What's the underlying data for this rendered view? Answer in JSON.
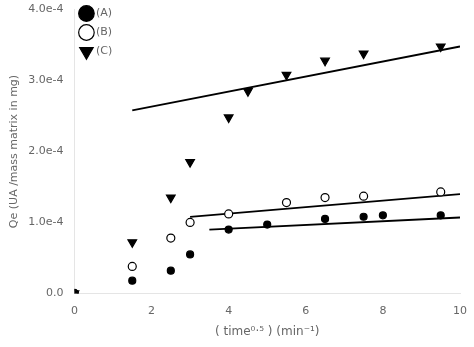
{
  "chart_data": {
    "type": "scatter",
    "xlabel": "( time⁰·⁵ ) (min⁻¹)",
    "ylabel": "Qe (UA /mass matrix in mg)",
    "xlim": [
      0,
      10
    ],
    "ylim": [
      0.0,
      0.0004
    ],
    "xticks": [
      0,
      2,
      4,
      6,
      8,
      10
    ],
    "yticks": [
      {
        "value": 0.0,
        "label": "0.0"
      },
      {
        "value": 0.0001,
        "label": "1.0e-4"
      },
      {
        "value": 0.0002,
        "label": "2.0e-4"
      },
      {
        "value": 0.0003,
        "label": "3.0e-4"
      },
      {
        "value": 0.0004,
        "label": "4.0e-4"
      }
    ],
    "grid": false,
    "legend": "upper left",
    "series": [
      {
        "name": "(A)",
        "color": "#000000",
        "marker": "circle",
        "x": [
          0.0,
          1.5,
          2.5,
          3.0,
          4.0,
          5.0,
          6.5,
          7.5,
          8.0,
          9.5
        ],
        "values": [
          0.0,
          1.8e-05,
          3.2e-05,
          5.5e-05,
          9e-05,
          9.7e-05,
          0.000105,
          0.000108,
          0.00011,
          0.00011
        ]
      },
      {
        "name": "(B)",
        "color": "#000000",
        "marker": "open_circle",
        "x": [
          0.0,
          1.5,
          2.5,
          3.0,
          4.0,
          5.5,
          6.5,
          7.5,
          9.5
        ],
        "values": [
          0.0,
          3.8e-05,
          7.8e-05,
          0.0001,
          0.000112,
          0.000128,
          0.000135,
          0.000137,
          0.000143
        ]
      },
      {
        "name": "(C)",
        "color": "#000000",
        "marker": "triangle_down",
        "x": [
          0.0,
          1.5,
          2.5,
          3.0,
          4.0,
          4.5,
          5.5,
          6.5,
          7.5,
          9.5
        ],
        "values": [
          0.0,
          7.2e-05,
          0.000135,
          0.000185,
          0.000248,
          0.000285,
          0.000308,
          0.000328,
          0.000338,
          0.000348
        ]
      },
      {
        "type": "line",
        "color": "#000000",
        "line_style": "solid",
        "x": [
          3.5,
          10.0
        ],
        "values": [
          9e-05,
          0.000107
        ]
      },
      {
        "type": "line",
        "color": "#000000",
        "line_style": "solid",
        "x": [
          3.0,
          10.0
        ],
        "values": [
          0.000108,
          0.00014
        ]
      },
      {
        "type": "line",
        "color": "#000000",
        "line_style": "solid",
        "x": [
          1.5,
          10.0
        ],
        "values": [
          0.000258,
          0.000348
        ]
      }
    ]
  }
}
